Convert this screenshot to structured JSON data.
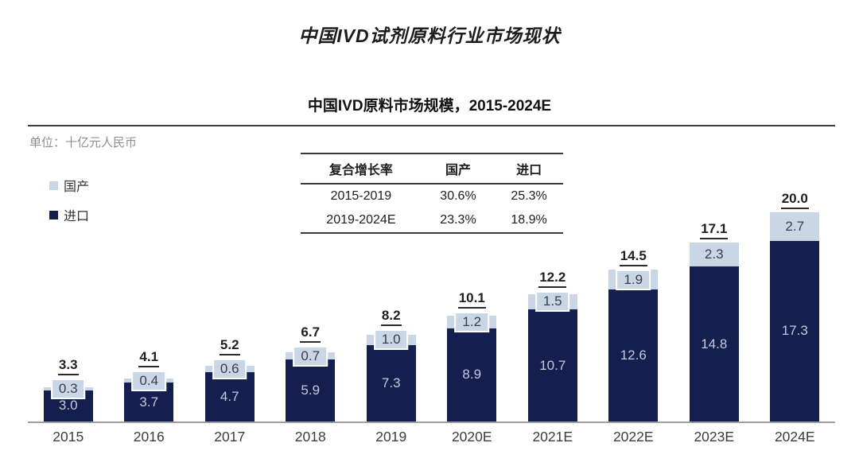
{
  "title": "中国IVD试剂原料行业市场现状",
  "chart": {
    "title": "中国IVD原料市场规模，2015-2024E",
    "unit_label": "单位：十亿元人民币",
    "legend": [
      {
        "label": "国产",
        "color": "#c9d6e6"
      },
      {
        "label": "进口",
        "color": "#141f4f"
      }
    ]
  },
  "growth_table": {
    "headers": [
      "复合增长率",
      "国产",
      "进口"
    ],
    "rows": [
      {
        "period": "2015-2019",
        "domestic": "30.6%",
        "import": "25.3%"
      },
      {
        "period": "2019-2024E",
        "domestic": "23.3%",
        "import": "18.9%"
      }
    ]
  },
  "chart_data": {
    "type": "bar",
    "stacked": true,
    "title": "中国IVD原料市场规模，2015-2024E",
    "unit": "十亿元人民币",
    "categories": [
      "2015",
      "2016",
      "2017",
      "2018",
      "2019",
      "2020E",
      "2021E",
      "2022E",
      "2023E",
      "2024E"
    ],
    "series": [
      {
        "name": "进口",
        "color": "#141f4f",
        "values": [
          3.0,
          3.7,
          4.7,
          5.9,
          7.3,
          8.9,
          10.7,
          12.6,
          14.8,
          17.3
        ]
      },
      {
        "name": "国产",
        "color": "#c9d6e6",
        "values": [
          0.3,
          0.4,
          0.6,
          0.7,
          1.0,
          1.2,
          1.5,
          1.9,
          2.3,
          2.7
        ]
      }
    ],
    "totals": [
      3.3,
      4.1,
      5.2,
      6.7,
      8.2,
      10.1,
      12.2,
      14.5,
      17.1,
      20.0
    ],
    "ylim": [
      0,
      20
    ],
    "grid": false,
    "legend_position": "left"
  },
  "colors": {
    "import_bar": "#141f4f",
    "domestic_bar": "#c9d6e6",
    "axis_line": "#9e9e9e",
    "divider_line": "#3d3d3d",
    "unit_text": "#8f8f8f"
  }
}
